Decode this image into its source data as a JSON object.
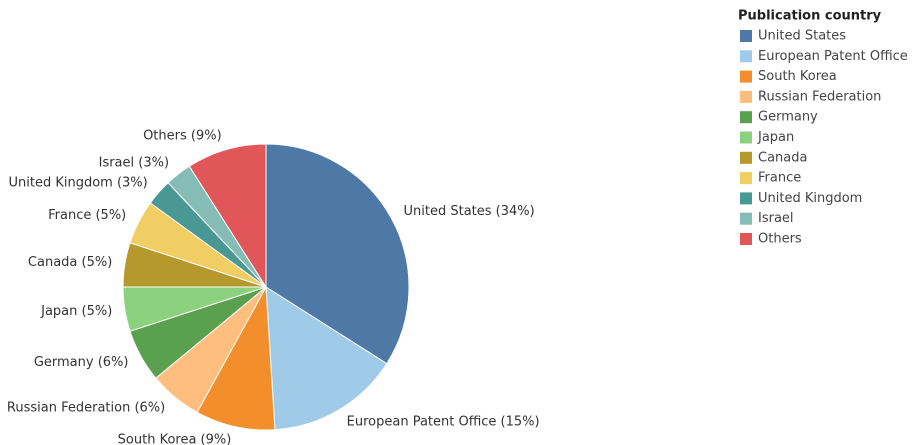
{
  "chart_data": {
    "type": "pie",
    "legend_title": "Publication country",
    "categories": [
      "United States",
      "European Patent Office",
      "South Korea",
      "Russian Federation",
      "Germany",
      "Japan",
      "Canada",
      "France",
      "United Kingdom",
      "Israel",
      "Others"
    ],
    "values": [
      34,
      15,
      9,
      6,
      6,
      5,
      5,
      5,
      3,
      3,
      9
    ],
    "value_labels": [
      "United States (34%)",
      "European Patent Office (15%)",
      "South Korea (9%)",
      "Russian Federation (6%)",
      "Germany (6%)",
      "Japan (5%)",
      "Canada (5%)",
      "France (5%)",
      "United Kingdom (3%)",
      "Israel (3%)",
      "Others (9%)"
    ],
    "colors": [
      "#4e79a7",
      "#a0cbe8",
      "#f28e2b",
      "#ffbe7d",
      "#59a14f",
      "#8cd17d",
      "#b6992d",
      "#f1ce63",
      "#499894",
      "#86bcb6",
      "#e15759"
    ],
    "legend_position": "right"
  }
}
